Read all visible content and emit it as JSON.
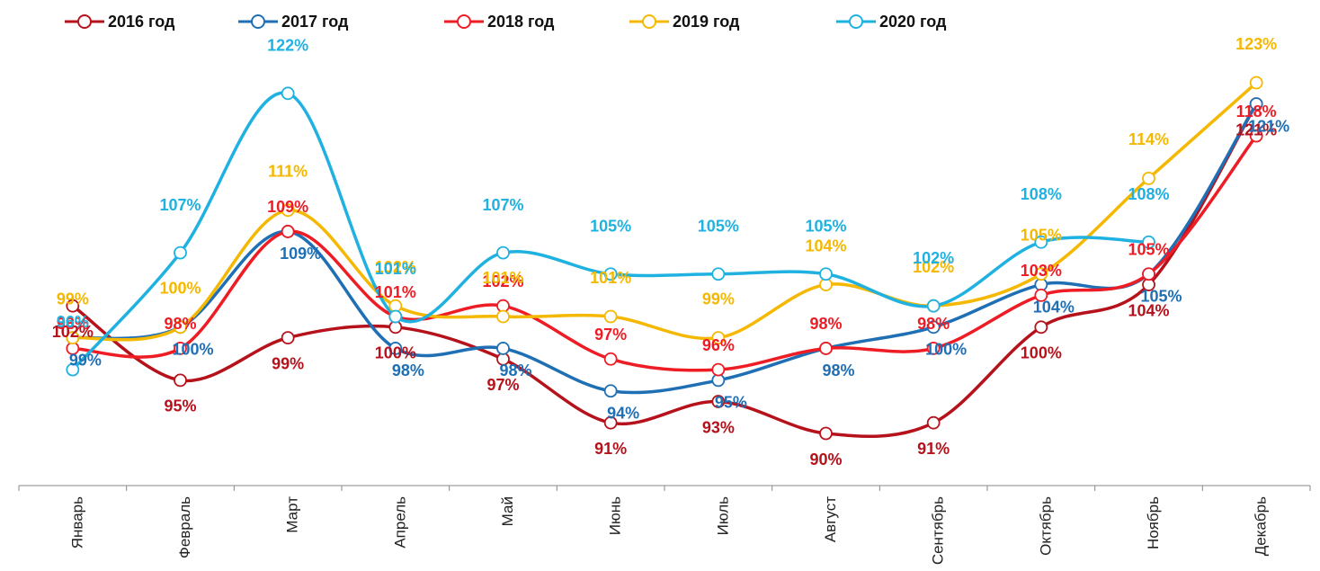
{
  "chart_data": {
    "type": "line",
    "categories": [
      "Январь",
      "Февраль",
      "Март",
      "Апрель",
      "Май",
      "Июнь",
      "Июль",
      "Август",
      "Сентябрь",
      "Октябрь",
      "Ноябрь",
      "Декабрь"
    ],
    "series": [
      {
        "name": "2016 год",
        "color": "#b5121b",
        "values": [
          102,
          95,
          99,
          100,
          97,
          91,
          93,
          90,
          91,
          100,
          104,
          121
        ],
        "value_labels": [
          "102%",
          "95%",
          "99%",
          "100%",
          "97%",
          "91%",
          "93%",
          "90%",
          "91%",
          "100%",
          "104%",
          "121%"
        ]
      },
      {
        "name": "2017 год",
        "color": "#1f6fb5",
        "values": [
          99,
          100,
          109,
          98,
          98,
          94,
          95,
          98,
          100,
          104,
          105,
          121
        ],
        "value_labels": [
          "99%",
          "100%",
          "109%",
          "98%",
          "98%",
          "94%",
          "95%",
          "98%",
          "100%",
          "104%",
          "105%",
          "121%"
        ]
      },
      {
        "name": "2018 год",
        "color": "#ee1c25",
        "values": [
          98,
          98,
          109,
          101,
          102,
          97,
          96,
          98,
          98,
          103,
          105,
          118
        ],
        "value_labels": [
          "98%",
          "98%",
          "109%",
          "101%",
          "102%",
          "97%",
          "96%",
          "98%",
          "98%",
          "103%",
          "105%",
          "118%"
        ]
      },
      {
        "name": "2019 год",
        "color": "#f5b800",
        "values": [
          99,
          100,
          111,
          102,
          101,
          101,
          99,
          104,
          102,
          105,
          114,
          123
        ],
        "value_labels": [
          "99%",
          "100%",
          "111%",
          "102%",
          "101%",
          "101%",
          "99%",
          "104%",
          "102%",
          "105%",
          "114%",
          "123%"
        ]
      },
      {
        "name": "2020 год",
        "color": "#1fb1e0",
        "values": [
          96,
          107,
          122,
          101,
          107,
          105,
          105,
          105,
          102,
          108,
          108,
          null
        ],
        "value_labels": [
          "96%",
          "107%",
          "122%",
          "101%",
          "107%",
          "105%",
          "105%",
          "105%",
          "102%",
          "108%",
          "108%",
          null
        ]
      }
    ]
  }
}
